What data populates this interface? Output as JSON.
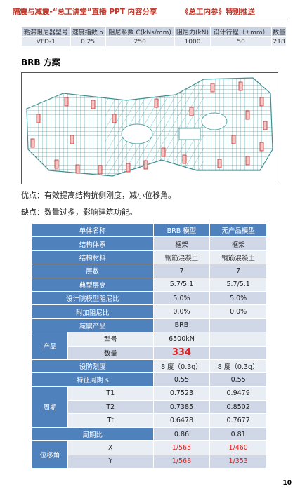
{
  "header": {
    "left": "隔震与减震-“总工讲堂”直播 PPT 内容分享",
    "right": "《总工内参》特别推送"
  },
  "damper_table": {
    "columns": [
      "粘滞阻尼器型号",
      "速度指数 α",
      "阻尼系数 C(kNs/mm)",
      "阻尼力(kN)",
      "设计行程（±mm）",
      "数量"
    ],
    "rows": [
      [
        "VFD-1",
        "0.25",
        "250",
        "1000",
        "50",
        "218"
      ]
    ]
  },
  "section_title": "BRB 方案",
  "pros": "优点：有效提高结构抗侧刚度，减小位移角。",
  "cons": "缺点：数量过多，影响建筑功能。",
  "comparison_table": {
    "columns": [
      "单体名称",
      "BRB 模型",
      "无产品模型"
    ],
    "rows": [
      {
        "label": "结构体系",
        "values": [
          "框架",
          "框架"
        ]
      },
      {
        "label": "结构材料",
        "values": [
          "钢筋混凝土",
          "钢筋混凝土"
        ]
      },
      {
        "label": "层数",
        "values": [
          "7",
          "7"
        ]
      },
      {
        "label": "典型层高",
        "values": [
          "5.7/5.1",
          "5.7/5.1"
        ]
      },
      {
        "label": "设计院模型阻尼比",
        "values": [
          "5.0%",
          "5.0%"
        ]
      },
      {
        "label": "附加阻尼比",
        "values": [
          "0.0%",
          "0.0%"
        ]
      },
      {
        "label": "减震产品",
        "values": [
          "BRB"
        ]
      },
      {
        "group": "产品",
        "items": [
          {
            "label": "型号",
            "values": [
              "6500kN"
            ]
          },
          {
            "label": "数量",
            "values": [
              "334"
            ]
          }
        ]
      },
      {
        "label": "设防烈度",
        "values": [
          "8 度（0.3g）",
          "8 度（0.3g）"
        ]
      },
      {
        "label": "特征周期 s",
        "values": [
          "0.55",
          "0.55"
        ]
      },
      {
        "group": "周期",
        "items": [
          {
            "label": "T1",
            "values": [
              "0.7523",
              "0.9479"
            ]
          },
          {
            "label": "T2",
            "values": [
              "0.7385",
              "0.8502"
            ]
          },
          {
            "label": "Tt",
            "values": [
              "0.6478",
              "0.7677"
            ]
          }
        ]
      },
      {
        "label": "周期比",
        "values": [
          "0.86",
          "0.81"
        ]
      },
      {
        "group": "位移角",
        "items": [
          {
            "label": "X",
            "values": [
              "1/565",
              "1/460"
            ]
          },
          {
            "label": "Y",
            "values": [
              "1/568",
              "1/353"
            ]
          }
        ]
      }
    ]
  },
  "page_number": "10"
}
